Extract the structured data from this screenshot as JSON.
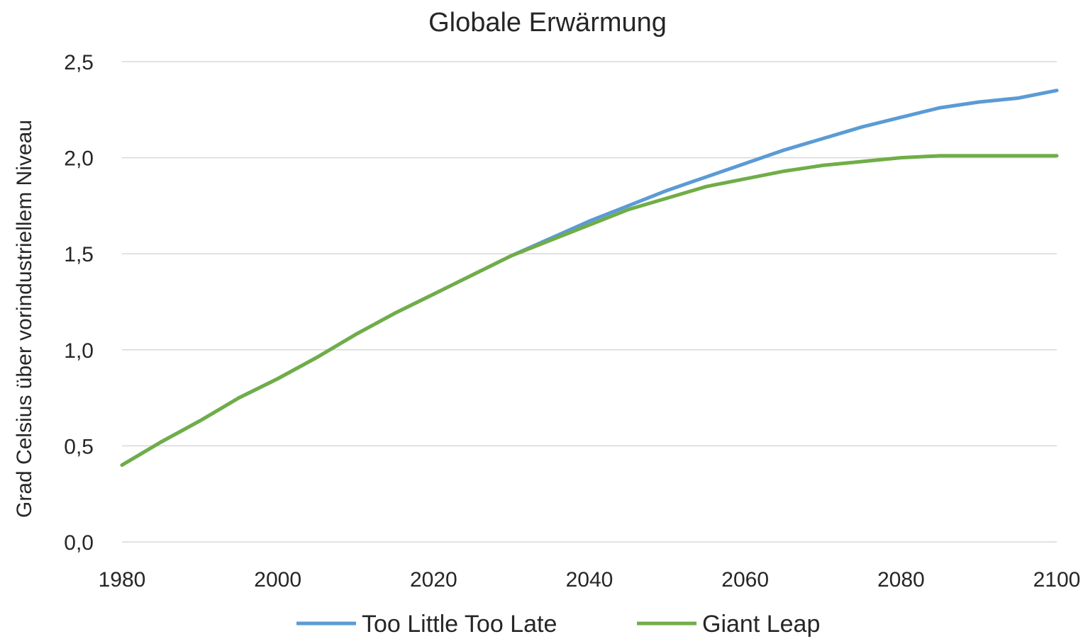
{
  "chart_data": {
    "type": "line",
    "title": "Globale Erwärmung",
    "xlabel": "",
    "ylabel": "Grad Celsius über vorindustriellem Niveau",
    "xlim": [
      1980,
      2100
    ],
    "ylim": [
      0.0,
      2.5
    ],
    "grid": true,
    "legend_position": "bottom",
    "x_ticks": [
      1980,
      2000,
      2020,
      2040,
      2060,
      2080,
      2100
    ],
    "x_tick_labels": [
      "1980",
      "2000",
      "2020",
      "2040",
      "2060",
      "2080",
      "2100"
    ],
    "y_ticks": [
      0.0,
      0.5,
      1.0,
      1.5,
      2.0,
      2.5
    ],
    "y_tick_labels": [
      "0,0",
      "0,5",
      "1,0",
      "1,5",
      "2,0",
      "2,5"
    ],
    "x": [
      1980,
      1985,
      1990,
      1995,
      2000,
      2005,
      2010,
      2015,
      2020,
      2025,
      2030,
      2035,
      2040,
      2045,
      2050,
      2055,
      2060,
      2065,
      2070,
      2075,
      2080,
      2085,
      2090,
      2095,
      2100
    ],
    "series": [
      {
        "name": "Too Little Too Late",
        "color": "#5b9bd5",
        "values": [
          0.4,
          0.52,
          0.63,
          0.75,
          0.85,
          0.96,
          1.08,
          1.19,
          1.29,
          1.39,
          1.49,
          1.58,
          1.67,
          1.75,
          1.83,
          1.9,
          1.97,
          2.04,
          2.1,
          2.16,
          2.21,
          2.26,
          2.29,
          2.31,
          2.35
        ]
      },
      {
        "name": "Giant Leap",
        "color": "#70ad47",
        "values": [
          0.4,
          0.52,
          0.63,
          0.75,
          0.85,
          0.96,
          1.08,
          1.19,
          1.29,
          1.39,
          1.49,
          1.57,
          1.65,
          1.73,
          1.79,
          1.85,
          1.89,
          1.93,
          1.96,
          1.98,
          2.0,
          2.01,
          2.01,
          2.01,
          2.01
        ]
      }
    ]
  }
}
